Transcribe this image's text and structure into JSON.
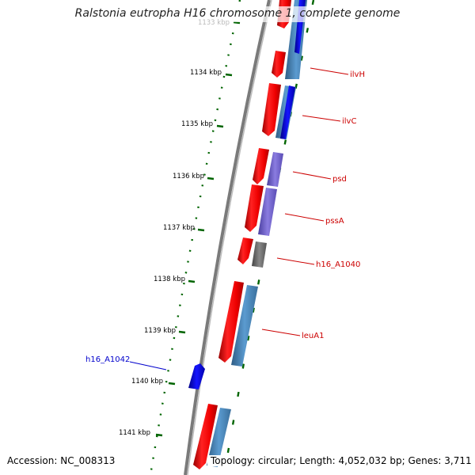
{
  "title": "Ralstonia eutropha H16 chromosome 1, complete genome",
  "footer": {
    "accession": "Accession: NC_008313",
    "topology": "Topology: circular; Length: 4,052,032 bp; Genes: 3,711"
  },
  "ticks": [
    {
      "label": "1133 kbp",
      "partially_hidden": true
    },
    {
      "label": "1134 kbp"
    },
    {
      "label": "1135 kbp"
    },
    {
      "label": "1136 kbp"
    },
    {
      "label": "1137 kbp"
    },
    {
      "label": "1138 kbp"
    },
    {
      "label": "1139 kbp"
    },
    {
      "label": "1140 kbp"
    },
    {
      "label": "1141 kbp"
    }
  ],
  "gene_labels": [
    {
      "label": "ilvH",
      "color": "#cc0000"
    },
    {
      "label": "ilvC",
      "color": "#cc0000"
    },
    {
      "label": "psd",
      "color": "#cc0000"
    },
    {
      "label": "pssA",
      "color": "#cc0000"
    },
    {
      "label": "h16_A1040",
      "color": "#cc0000"
    },
    {
      "label": "leuA1",
      "color": "#cc0000"
    },
    {
      "label": "h16_A1042",
      "color": "#0000cc"
    }
  ],
  "colors": {
    "cds": "#ee0000",
    "blue_gene": "#0000ee",
    "steel_gene": "#4682b4",
    "purple_gene": "#6a5acd",
    "gray_gene": "#666666",
    "backbone": "#808080",
    "tick_marks": "#006400"
  }
}
